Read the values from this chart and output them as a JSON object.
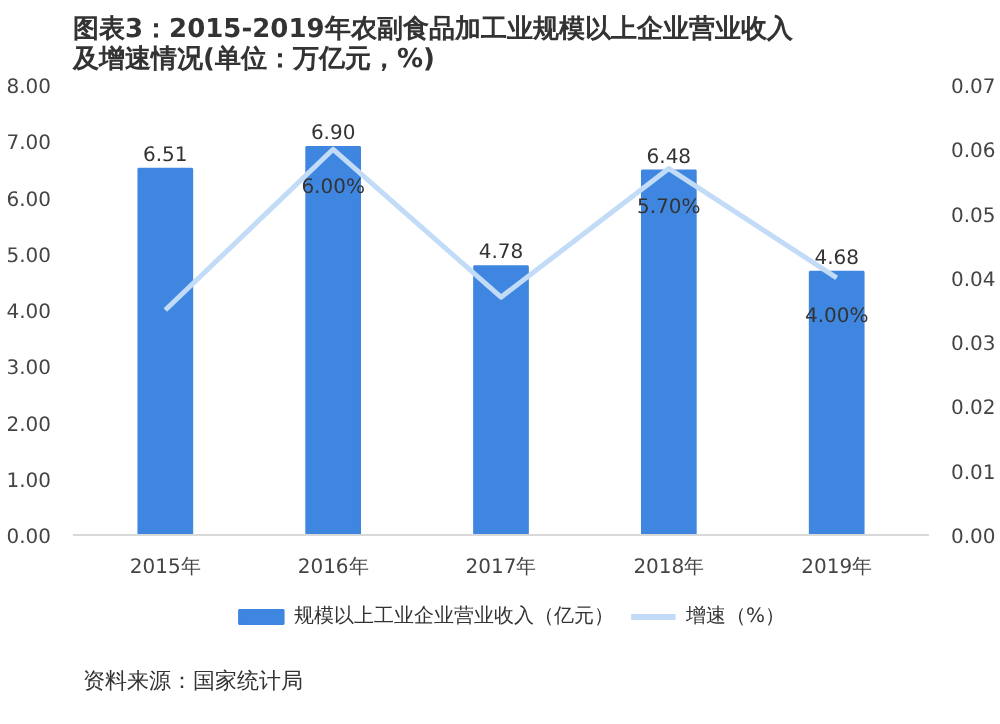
{
  "chart_data": {
    "type": "bar",
    "title": "图表3：2015-2019年农副食品加工业规模以上企业营业收入及增速情况(单位：万亿元，%)",
    "categories": [
      "2015年",
      "2016年",
      "2017年",
      "2018年",
      "2019年"
    ],
    "series": [
      {
        "name": "规模以上工业企业营业收入（亿元）",
        "color": "#3f86e0",
        "values": [
          6.51,
          6.9,
          4.78,
          6.48,
          4.68
        ],
        "value_labels": [
          "6.51",
          "6.90",
          "4.78",
          "6.48",
          "4.68"
        ]
      },
      {
        "name": "增速（%）",
        "type": "line",
        "axis": "y2",
        "color": "#c2dbf7",
        "values": [
          0.035,
          0.06,
          0.037,
          0.057,
          0.04
        ],
        "value_labels": [
          null,
          "6.00%",
          null,
          "5.70%",
          "4.00%"
        ]
      }
    ],
    "ylim": [
      0,
      8
    ],
    "yticks": [
      {
        "value": 0,
        "label": "0.00"
      },
      {
        "value": 1,
        "label": "1.00"
      },
      {
        "value": 2,
        "label": "2.00"
      },
      {
        "value": 3,
        "label": "3.00"
      },
      {
        "value": 4,
        "label": "4.00"
      },
      {
        "value": 5,
        "label": "5.00"
      },
      {
        "value": 6,
        "label": "6.00"
      },
      {
        "value": 7,
        "label": "7.00"
      },
      {
        "value": 8,
        "label": "8.00"
      }
    ],
    "y2lim": [
      0,
      0.07
    ],
    "y2ticks": [
      {
        "value": 0,
        "label": "0.00"
      },
      0.01,
      0.02,
      0.03,
      0.04,
      0.05,
      0.06,
      0.07
    ],
    "grid": false,
    "legend": "bottom",
    "annotations": [
      "资料来源：国家统计局"
    ]
  }
}
